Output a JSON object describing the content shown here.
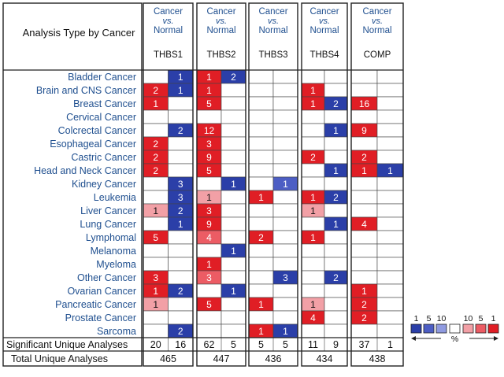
{
  "chart_data": {
    "type": "heatmap",
    "header_title": "Analysis Type by Cancer",
    "comparison": {
      "line1": "Cancer",
      "line2": "vs.",
      "line3": "Normal"
    },
    "genes": [
      "THBS1",
      "THBS2",
      "THBS3",
      "THBS4",
      "COMP"
    ],
    "cancers": [
      "Bladder Cancer",
      "Brain and CNS Cancer",
      "Breast Cancer",
      "Cervical Cancer",
      "Colcrectal Cancer",
      "Esophageal Cancer",
      "Castric Cancer",
      "Head and Neck Cancer",
      "Kidney Cancer",
      "Leukemia",
      "Liver Cancer",
      "Lung Cancer",
      "Lymphomal",
      "Melanoma",
      "Myeloma",
      "Other Cancer",
      "Ovarian Cancer",
      "Pancreatic Cancer",
      "Prostate Cancer",
      "Sarcoma"
    ],
    "cells": [
      [
        [
          null,
          1
        ],
        [
          1,
          2
        ],
        [
          null,
          null
        ],
        [
          null,
          null
        ],
        [
          null,
          null
        ]
      ],
      [
        [
          2,
          1
        ],
        [
          1,
          null
        ],
        [
          null,
          null
        ],
        [
          1,
          null
        ],
        [
          null,
          null
        ]
      ],
      [
        [
          1,
          null
        ],
        [
          5,
          null
        ],
        [
          null,
          null
        ],
        [
          1,
          2
        ],
        [
          16,
          null
        ]
      ],
      [
        [
          null,
          null
        ],
        [
          null,
          null
        ],
        [
          null,
          null
        ],
        [
          null,
          null
        ],
        [
          null,
          null
        ]
      ],
      [
        [
          null,
          2
        ],
        [
          12,
          null
        ],
        [
          null,
          null
        ],
        [
          null,
          1
        ],
        [
          9,
          null
        ]
      ],
      [
        [
          2,
          null
        ],
        [
          3,
          null
        ],
        [
          null,
          null
        ],
        [
          null,
          null
        ],
        [
          null,
          null
        ]
      ],
      [
        [
          2,
          null
        ],
        [
          9,
          null
        ],
        [
          null,
          null
        ],
        [
          2,
          null
        ],
        [
          2,
          null
        ]
      ],
      [
        [
          2,
          null
        ],
        [
          5,
          null
        ],
        [
          null,
          null
        ],
        [
          null,
          1
        ],
        [
          1,
          1
        ]
      ],
      [
        [
          null,
          3
        ],
        [
          null,
          1
        ],
        [
          null,
          1
        ],
        [
          null,
          null
        ],
        [
          null,
          null
        ]
      ],
      [
        [
          null,
          3
        ],
        [
          1,
          null
        ],
        [
          1,
          null
        ],
        [
          1,
          2
        ],
        [
          null,
          null
        ]
      ],
      [
        [
          1,
          2
        ],
        [
          3,
          null
        ],
        [
          null,
          null
        ],
        [
          1,
          null
        ],
        [
          null,
          null
        ]
      ],
      [
        [
          null,
          1
        ],
        [
          9,
          null
        ],
        [
          null,
          null
        ],
        [
          null,
          1
        ],
        [
          4,
          null
        ]
      ],
      [
        [
          5,
          null
        ],
        [
          4,
          null
        ],
        [
          2,
          null
        ],
        [
          1,
          null
        ],
        [
          null,
          null
        ]
      ],
      [
        [
          null,
          null
        ],
        [
          null,
          1
        ],
        [
          null,
          null
        ],
        [
          null,
          null
        ],
        [
          null,
          null
        ]
      ],
      [
        [
          null,
          null
        ],
        [
          1,
          null
        ],
        [
          null,
          null
        ],
        [
          null,
          null
        ],
        [
          null,
          null
        ]
      ],
      [
        [
          3,
          null
        ],
        [
          3,
          null
        ],
        [
          null,
          3
        ],
        [
          null,
          2
        ],
        [
          null,
          null
        ]
      ],
      [
        [
          1,
          2
        ],
        [
          null,
          1
        ],
        [
          null,
          null
        ],
        [
          null,
          null
        ],
        [
          1,
          null
        ]
      ],
      [
        [
          1,
          null
        ],
        [
          5,
          null
        ],
        [
          1,
          null
        ],
        [
          1,
          null
        ],
        [
          2,
          null
        ]
      ],
      [
        [
          null,
          null
        ],
        [
          null,
          null
        ],
        [
          null,
          null
        ],
        [
          4,
          null
        ],
        [
          2,
          null
        ]
      ],
      [
        [
          null,
          2
        ],
        [
          null,
          null
        ],
        [
          1,
          1
        ],
        [
          null,
          null
        ],
        [
          null,
          null
        ]
      ]
    ],
    "cell_shades": [
      [
        [
          null,
          "b1"
        ],
        [
          "r1",
          "b1"
        ],
        [
          null,
          null
        ],
        [
          null,
          null
        ],
        [
          null,
          null
        ]
      ],
      [
        [
          "r1",
          "b1"
        ],
        [
          "r1",
          null
        ],
        [
          null,
          null
        ],
        [
          "r1",
          null
        ],
        [
          null,
          null
        ]
      ],
      [
        [
          "r1",
          null
        ],
        [
          "r1",
          null
        ],
        [
          null,
          null
        ],
        [
          "r1",
          "b1"
        ],
        [
          "r1",
          null
        ]
      ],
      [
        [
          null,
          null
        ],
        [
          null,
          null
        ],
        [
          null,
          null
        ],
        [
          null,
          null
        ],
        [
          null,
          null
        ]
      ],
      [
        [
          null,
          "b1"
        ],
        [
          "r1",
          null
        ],
        [
          null,
          null
        ],
        [
          null,
          "b1"
        ],
        [
          "r1",
          null
        ]
      ],
      [
        [
          "r1",
          null
        ],
        [
          "r1",
          null
        ],
        [
          null,
          null
        ],
        [
          null,
          null
        ],
        [
          null,
          null
        ]
      ],
      [
        [
          "r1",
          null
        ],
        [
          "r1",
          null
        ],
        [
          null,
          null
        ],
        [
          "r1",
          null
        ],
        [
          "r1",
          null
        ]
      ],
      [
        [
          "r1",
          null
        ],
        [
          "r1",
          null
        ],
        [
          null,
          null
        ],
        [
          null,
          "b1"
        ],
        [
          "r1",
          "b1"
        ]
      ],
      [
        [
          null,
          "b1"
        ],
        [
          null,
          "b1"
        ],
        [
          null,
          "b5"
        ],
        [
          null,
          null
        ],
        [
          null,
          null
        ]
      ],
      [
        [
          null,
          "b1"
        ],
        [
          "r10",
          null
        ],
        [
          "r1",
          null
        ],
        [
          "r1",
          "b1"
        ],
        [
          null,
          null
        ]
      ],
      [
        [
          "r10",
          "b1"
        ],
        [
          "r1",
          null
        ],
        [
          null,
          null
        ],
        [
          "r10",
          null
        ],
        [
          null,
          null
        ]
      ],
      [
        [
          null,
          "b1"
        ],
        [
          "r1",
          null
        ],
        [
          null,
          null
        ],
        [
          null,
          "b1"
        ],
        [
          "r1",
          null
        ]
      ],
      [
        [
          "r1",
          null
        ],
        [
          "r5",
          null
        ],
        [
          "r1",
          null
        ],
        [
          "r1",
          null
        ],
        [
          null,
          null
        ]
      ],
      [
        [
          null,
          null
        ],
        [
          null,
          "b1"
        ],
        [
          null,
          null
        ],
        [
          null,
          null
        ],
        [
          null,
          null
        ]
      ],
      [
        [
          null,
          null
        ],
        [
          "r1",
          null
        ],
        [
          null,
          null
        ],
        [
          null,
          null
        ],
        [
          null,
          null
        ]
      ],
      [
        [
          "r1",
          null
        ],
        [
          "r5",
          null
        ],
        [
          null,
          "b1"
        ],
        [
          null,
          "b1"
        ],
        [
          null,
          null
        ]
      ],
      [
        [
          "r1",
          "b1"
        ],
        [
          null,
          "b1"
        ],
        [
          null,
          null
        ],
        [
          null,
          null
        ],
        [
          "r1",
          null
        ]
      ],
      [
        [
          "r10",
          null
        ],
        [
          "r1",
          null
        ],
        [
          "r1",
          null
        ],
        [
          "r10",
          null
        ],
        [
          "r1",
          null
        ]
      ],
      [
        [
          null,
          null
        ],
        [
          null,
          null
        ],
        [
          null,
          null
        ],
        [
          "r1",
          null
        ],
        [
          "r1",
          null
        ]
      ],
      [
        [
          null,
          "b1"
        ],
        [
          null,
          null
        ],
        [
          "r1",
          "b1"
        ],
        [
          null,
          null
        ],
        [
          null,
          null
        ]
      ]
    ],
    "significant_label": "Significant Unique Analyses",
    "significant": [
      [
        20,
        16
      ],
      [
        62,
        5
      ],
      [
        5,
        5
      ],
      [
        11,
        9
      ],
      [
        37,
        1
      ]
    ],
    "total_label": "Total Unique Analyses",
    "total": [
      465,
      447,
      436,
      434,
      438
    ],
    "legend": {
      "blue_labels": [
        "1",
        "5",
        "10"
      ],
      "red_labels": [
        "10",
        "5",
        "1"
      ],
      "unit": "%"
    },
    "colors": {
      "b1": "#2b3fa8",
      "b5": "#4d5ec4",
      "b10": "#8f9ae0",
      "r10": "#f2a0a6",
      "r5": "#ec5c64",
      "r1": "#e01e25",
      "label_blue": "#1f4f8f",
      "border": "#222222"
    }
  }
}
